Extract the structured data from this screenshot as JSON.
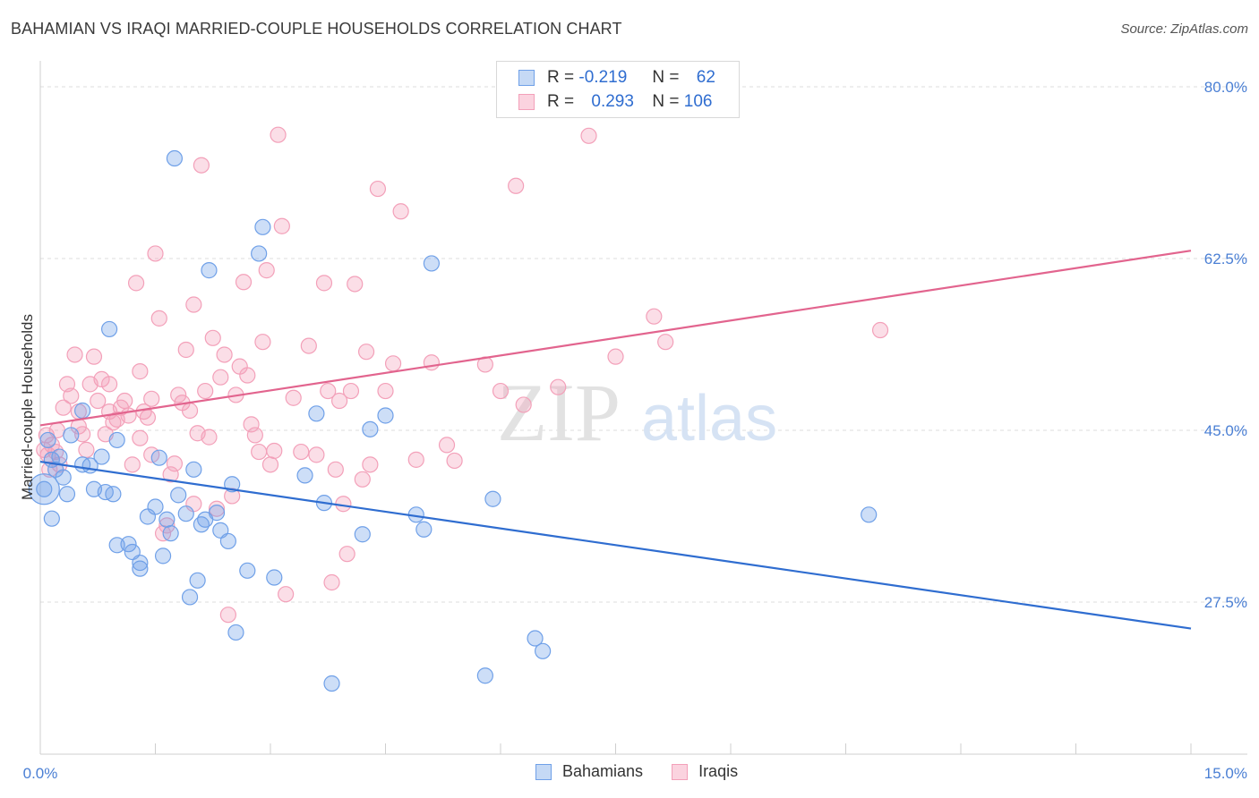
{
  "header": {
    "title": "BAHAMIAN VS IRAQI MARRIED-COUPLE HOUSEHOLDS CORRELATION CHART",
    "source": "Source: ZipAtlas.com"
  },
  "legend_stats": {
    "row1": {
      "r_label": "R =",
      "r_value": "-0.219",
      "n_label": "N =",
      "n_value": "62"
    },
    "row2": {
      "r_label": "R =",
      "r_value": "0.293",
      "n_label": "N =",
      "n_value": "106"
    }
  },
  "watermark": {
    "zip": "ZIP",
    "atlas": "atlas"
  },
  "chart_data": {
    "type": "scatter",
    "xlabel": "",
    "ylabel": "Married-couple Households",
    "xlim": [
      0.0,
      15.0
    ],
    "ylim": [
      12.0,
      82.0
    ],
    "x_tick_labels": [
      "0.0%",
      "15.0%"
    ],
    "y_ticks": [
      27.5,
      45.0,
      62.5,
      80.0
    ],
    "y_tick_labels": [
      "27.5%",
      "45.0%",
      "62.5%",
      "80.0%"
    ],
    "grid": true,
    "colors": {
      "bahamians": "#6fa0e8",
      "bahamians_line": "#2f6dd0",
      "iraqis": "#f3a0b9",
      "iraqis_line": "#e2648e"
    },
    "series": [
      {
        "name": "Bahamians",
        "trend": {
          "x": [
            0.0,
            15.0
          ],
          "y": [
            41.8,
            24.8
          ]
        },
        "points": [
          [
            0.05,
            39.0
          ],
          [
            0.1,
            44.0
          ],
          [
            0.15,
            42.0
          ],
          [
            0.2,
            41.0
          ],
          [
            0.25,
            42.3
          ],
          [
            0.35,
            38.5
          ],
          [
            0.4,
            44.5
          ],
          [
            0.55,
            41.5
          ],
          [
            0.55,
            47.0
          ],
          [
            0.65,
            41.4
          ],
          [
            0.7,
            39.0
          ],
          [
            0.8,
            42.3
          ],
          [
            0.85,
            38.7
          ],
          [
            0.9,
            55.3
          ],
          [
            0.95,
            38.5
          ],
          [
            1.0,
            33.3
          ],
          [
            1.15,
            33.4
          ],
          [
            1.2,
            32.6
          ],
          [
            1.3,
            30.9
          ],
          [
            1.3,
            31.5
          ],
          [
            1.4,
            36.2
          ],
          [
            1.5,
            37.2
          ],
          [
            1.55,
            42.2
          ],
          [
            1.65,
            35.9
          ],
          [
            1.7,
            34.5
          ],
          [
            1.75,
            72.7
          ],
          [
            1.8,
            38.4
          ],
          [
            1.9,
            36.5
          ],
          [
            1.95,
            28.0
          ],
          [
            2.0,
            41.0
          ],
          [
            2.05,
            29.7
          ],
          [
            2.1,
            35.4
          ],
          [
            2.15,
            35.9
          ],
          [
            2.2,
            61.3
          ],
          [
            2.3,
            36.6
          ],
          [
            2.35,
            34.8
          ],
          [
            2.45,
            33.7
          ],
          [
            2.55,
            24.4
          ],
          [
            2.7,
            30.7
          ],
          [
            2.85,
            63.0
          ],
          [
            2.9,
            65.7
          ],
          [
            3.05,
            30.0
          ],
          [
            3.45,
            40.4
          ],
          [
            3.6,
            46.7
          ],
          [
            3.7,
            37.6
          ],
          [
            3.8,
            19.2
          ],
          [
            4.2,
            34.4
          ],
          [
            4.3,
            45.1
          ],
          [
            4.5,
            46.5
          ],
          [
            4.9,
            36.4
          ],
          [
            5.0,
            34.9
          ],
          [
            5.1,
            62.0
          ],
          [
            5.8,
            20.0
          ],
          [
            5.9,
            38.0
          ],
          [
            6.45,
            23.8
          ],
          [
            6.55,
            22.5
          ],
          [
            10.8,
            36.4
          ],
          [
            0.3,
            40.2
          ],
          [
            1.0,
            44.0
          ],
          [
            1.6,
            32.2
          ],
          [
            0.15,
            36.0
          ],
          [
            2.5,
            39.5
          ]
        ]
      },
      {
        "name": "Iraqis",
        "trend": {
          "x": [
            0.0,
            15.0
          ],
          "y": [
            45.5,
            63.3
          ]
        },
        "points": [
          [
            0.05,
            43.0
          ],
          [
            0.08,
            44.5
          ],
          [
            0.1,
            42.5
          ],
          [
            0.12,
            41.0
          ],
          [
            0.15,
            43.5
          ],
          [
            0.2,
            42.8
          ],
          [
            0.22,
            45.0
          ],
          [
            0.25,
            41.5
          ],
          [
            0.3,
            47.3
          ],
          [
            0.35,
            49.7
          ],
          [
            0.4,
            48.5
          ],
          [
            0.45,
            52.7
          ],
          [
            0.5,
            46.9
          ],
          [
            0.55,
            44.6
          ],
          [
            0.6,
            43.0
          ],
          [
            0.65,
            49.7
          ],
          [
            0.7,
            52.5
          ],
          [
            0.75,
            48.0
          ],
          [
            0.8,
            50.2
          ],
          [
            0.85,
            44.6
          ],
          [
            0.9,
            49.7
          ],
          [
            0.95,
            45.8
          ],
          [
            1.0,
            46.1
          ],
          [
            1.05,
            47.3
          ],
          [
            1.1,
            48.0
          ],
          [
            1.15,
            46.5
          ],
          [
            1.2,
            41.5
          ],
          [
            1.25,
            60.0
          ],
          [
            1.3,
            51.0
          ],
          [
            1.35,
            46.9
          ],
          [
            1.4,
            46.3
          ],
          [
            1.45,
            42.5
          ],
          [
            1.5,
            63.0
          ],
          [
            1.55,
            56.4
          ],
          [
            1.6,
            34.5
          ],
          [
            1.65,
            35.3
          ],
          [
            1.7,
            40.5
          ],
          [
            1.75,
            41.6
          ],
          [
            1.8,
            48.6
          ],
          [
            1.85,
            47.8
          ],
          [
            1.9,
            53.2
          ],
          [
            1.95,
            47.0
          ],
          [
            2.0,
            57.8
          ],
          [
            2.05,
            44.7
          ],
          [
            2.1,
            72.0
          ],
          [
            2.15,
            49.0
          ],
          [
            2.2,
            44.3
          ],
          [
            2.25,
            54.4
          ],
          [
            2.3,
            37.0
          ],
          [
            2.35,
            50.4
          ],
          [
            2.4,
            52.7
          ],
          [
            2.45,
            26.2
          ],
          [
            2.5,
            38.3
          ],
          [
            2.55,
            48.6
          ],
          [
            2.6,
            51.5
          ],
          [
            2.65,
            60.1
          ],
          [
            2.7,
            50.6
          ],
          [
            2.75,
            45.6
          ],
          [
            2.8,
            44.5
          ],
          [
            2.85,
            42.8
          ],
          [
            2.9,
            54.0
          ],
          [
            2.95,
            61.3
          ],
          [
            3.0,
            41.5
          ],
          [
            3.05,
            42.9
          ],
          [
            3.1,
            75.1
          ],
          [
            3.15,
            65.8
          ],
          [
            3.2,
            28.3
          ],
          [
            3.3,
            48.3
          ],
          [
            3.4,
            42.8
          ],
          [
            3.5,
            53.6
          ],
          [
            3.6,
            42.5
          ],
          [
            3.7,
            60.0
          ],
          [
            3.75,
            49.0
          ],
          [
            3.8,
            29.5
          ],
          [
            3.85,
            41.0
          ],
          [
            3.9,
            48.0
          ],
          [
            3.95,
            37.5
          ],
          [
            4.0,
            32.4
          ],
          [
            4.05,
            49.0
          ],
          [
            4.1,
            59.9
          ],
          [
            4.2,
            40.0
          ],
          [
            4.25,
            53.0
          ],
          [
            4.3,
            41.5
          ],
          [
            4.4,
            69.6
          ],
          [
            4.5,
            49.0
          ],
          [
            4.6,
            51.8
          ],
          [
            4.7,
            67.3
          ],
          [
            4.9,
            42.0
          ],
          [
            5.1,
            51.9
          ],
          [
            5.3,
            43.5
          ],
          [
            5.4,
            41.9
          ],
          [
            5.8,
            51.7
          ],
          [
            6.0,
            49.0
          ],
          [
            6.2,
            69.9
          ],
          [
            6.3,
            47.6
          ],
          [
            6.75,
            49.4
          ],
          [
            7.15,
            75.0
          ],
          [
            7.5,
            52.5
          ],
          [
            8.0,
            56.6
          ],
          [
            8.15,
            54.0
          ],
          [
            10.95,
            55.2
          ],
          [
            0.5,
            45.4
          ],
          [
            0.9,
            46.9
          ],
          [
            1.3,
            44.2
          ],
          [
            2.0,
            37.5
          ],
          [
            1.45,
            48.2
          ]
        ]
      }
    ]
  }
}
